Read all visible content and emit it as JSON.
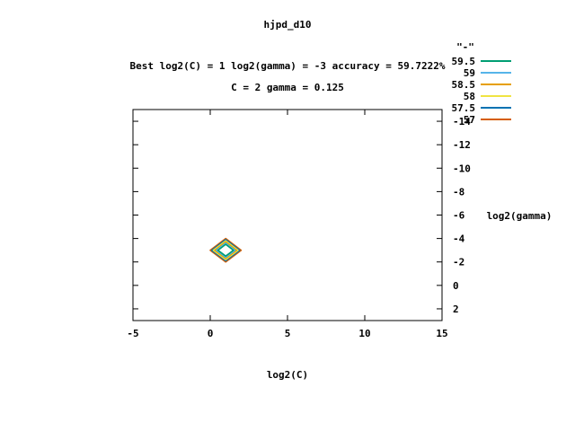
{
  "chart_data": {
    "type": "contour",
    "title": "hjpd_d10",
    "subtitle_line1": "Best log2(C) = 1  log2(gamma) = -3  accuracy = 59.7222%",
    "subtitle_line2": "C = 2  gamma = 0.125",
    "xlabel": "log2(C)",
    "ylabel": "log2(gamma)",
    "xlim": [
      -5,
      15
    ],
    "ylim": [
      3,
      -15
    ],
    "xticks": [
      -5,
      0,
      5,
      10,
      15
    ],
    "xtick_labels": [
      "-5",
      "0",
      "5",
      "10",
      "15"
    ],
    "yticks": [
      2,
      0,
      -2,
      -4,
      -6,
      -8,
      -10,
      -12,
      -14
    ],
    "ytick_labels": [
      "2",
      "0",
      "-2",
      "-4",
      "-6",
      "-8",
      "-10",
      "-12",
      "-14"
    ],
    "y_axis_side": "right",
    "legend_title": "\"-\"",
    "legend_position": "top-right-outside",
    "series": [
      {
        "level": "59.5",
        "color": "#009e73",
        "points": [
          [
            1,
            -2.5
          ],
          [
            1.5,
            -3
          ],
          [
            1,
            -3.5
          ],
          [
            0.5,
            -3
          ]
        ]
      },
      {
        "level": "59",
        "color": "#56b4e9",
        "points": [
          [
            1,
            -2.4
          ],
          [
            1.6,
            -3
          ],
          [
            1,
            -3.6
          ],
          [
            0.4,
            -3
          ]
        ]
      },
      {
        "level": "58.5",
        "color": "#e69f00",
        "points": [
          [
            1,
            -2.3
          ],
          [
            1.7,
            -3
          ],
          [
            1,
            -3.7
          ],
          [
            0.3,
            -3
          ]
        ]
      },
      {
        "level": "58",
        "color": "#f0e442",
        "points": [
          [
            1,
            -2.2
          ],
          [
            1.8,
            -3
          ],
          [
            1,
            -3.8
          ],
          [
            0.2,
            -3
          ]
        ]
      },
      {
        "level": "57.5",
        "color": "#0072b2",
        "points": [
          [
            1,
            -2.1
          ],
          [
            1.9,
            -3
          ],
          [
            1,
            -3.9
          ],
          [
            0.1,
            -3
          ]
        ]
      },
      {
        "level": "57",
        "color": "#d55e00",
        "points": [
          [
            1,
            -2.0
          ],
          [
            2.0,
            -3
          ],
          [
            1,
            -4.0
          ],
          [
            0.0,
            -3
          ]
        ]
      }
    ]
  }
}
